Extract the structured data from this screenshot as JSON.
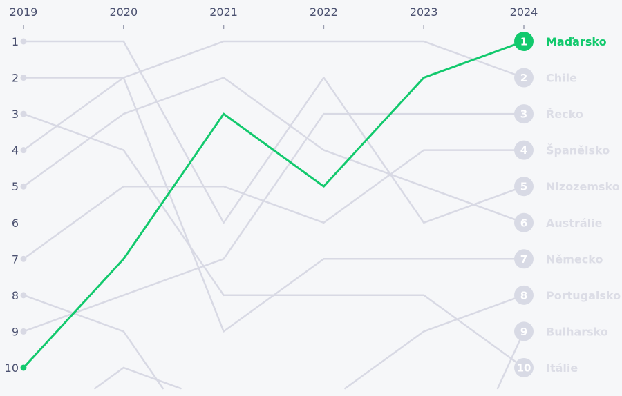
{
  "chart_data": {
    "type": "bump",
    "years": [
      "2019",
      "2020",
      "2021",
      "2022",
      "2023",
      "2024"
    ],
    "ranks_shown": [
      1,
      2,
      3,
      4,
      5,
      6,
      7,
      8,
      9,
      10
    ],
    "highlight_color": "#12c96d",
    "muted_color": "#d8d9e4",
    "series": [
      {
        "name": "Maďarsko",
        "ranks": [
          10,
          7,
          3,
          5,
          2,
          1
        ],
        "highlight": true
      },
      {
        "name": "Chile",
        "ranks": [
          4,
          2,
          1,
          1,
          1,
          2
        ]
      },
      {
        "name": "Řecko",
        "ranks": [
          9,
          8,
          7,
          3,
          3,
          3
        ]
      },
      {
        "name": "Španělsko",
        "ranks": [
          7,
          5,
          5,
          6,
          4,
          4
        ]
      },
      {
        "name": "Nizozemsko",
        "ranks": [
          1,
          1,
          6,
          2,
          6,
          5
        ]
      },
      {
        "name": "Austrálie",
        "ranks": [
          5,
          3,
          2,
          4,
          5,
          6
        ]
      },
      {
        "name": "Německo",
        "ranks": [
          2,
          2,
          9,
          7,
          7,
          7
        ]
      },
      {
        "name": "Portugalsko",
        "ranks": [
          null,
          null,
          null,
          11,
          9,
          8
        ]
      },
      {
        "name": "Bulharsko",
        "ranks": [
          null,
          null,
          null,
          null,
          15,
          9
        ]
      },
      {
        "name": "Itálie",
        "ranks": [
          3,
          4,
          8,
          8,
          8,
          10
        ]
      },
      {
        "name": "",
        "ranks": [
          8,
          9,
          13,
          null,
          null,
          null
        ]
      },
      {
        "name": "",
        "ranks": [
          12,
          10,
          11,
          null,
          null,
          null
        ]
      }
    ]
  }
}
